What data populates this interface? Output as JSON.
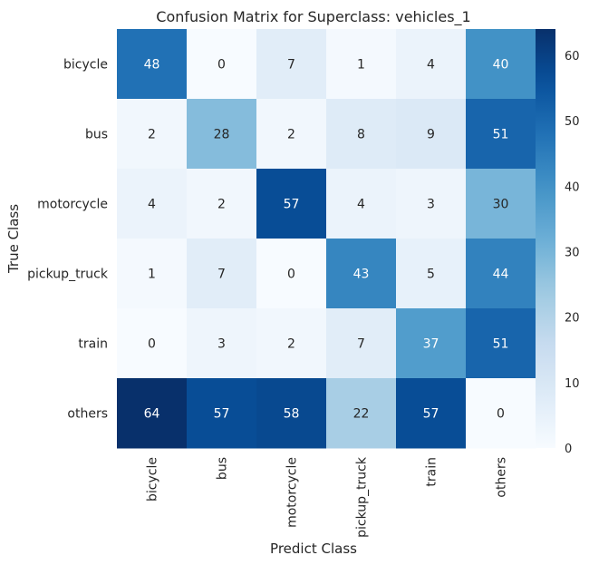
{
  "chart_data": {
    "type": "heatmap",
    "title": "Confusion Matrix for Superclass: vehicles_1",
    "xlabel": "Predict Class",
    "ylabel": "True Class",
    "x_categories": [
      "bicycle",
      "bus",
      "motorcycle",
      "pickup_truck",
      "train",
      "others"
    ],
    "y_categories": [
      "bicycle",
      "bus",
      "motorcycle",
      "pickup_truck",
      "train",
      "others"
    ],
    "values": [
      [
        48,
        0,
        7,
        1,
        4,
        40
      ],
      [
        2,
        28,
        2,
        8,
        9,
        51
      ],
      [
        4,
        2,
        57,
        4,
        3,
        30
      ],
      [
        1,
        7,
        0,
        43,
        5,
        44
      ],
      [
        0,
        3,
        2,
        7,
        37,
        51
      ],
      [
        64,
        57,
        58,
        22,
        57,
        0
      ]
    ],
    "colormap": "Blues",
    "vmin": 0,
    "vmax": 64,
    "colorbar_ticks": [
      0,
      10,
      20,
      30,
      40,
      50,
      60
    ],
    "colors": {
      "low": "#f7fbff",
      "high": "#08306b",
      "text_dark": "#262626",
      "text_light": "#ffffff"
    },
    "grid": false,
    "legend": "colorbar-right"
  }
}
